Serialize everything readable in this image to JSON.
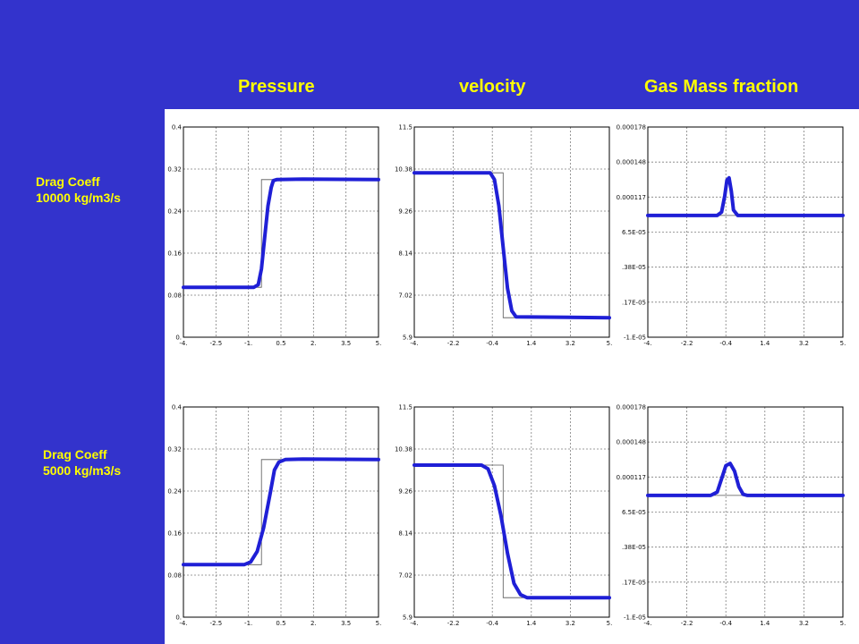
{
  "headers": [
    "Pressure",
    "velocity",
    "Gas Mass fraction"
  ],
  "row_labels": [
    {
      "line1": "Drag Coeff",
      "line2": "10000 kg/m3/s"
    },
    {
      "line1": "Drag Coeff",
      "line2": "5000 kg/m3/s"
    }
  ],
  "colors": {
    "background": "#3333cc",
    "header": "#ffff00",
    "series": "#1f1fd6",
    "reference": "#555555",
    "grid": "#7f7f7f"
  },
  "chart_data": [
    {
      "type": "line",
      "title": "Pressure",
      "row": 0,
      "col": 0,
      "xlim": [
        -4,
        5
      ],
      "ylim": [
        0,
        0.4
      ],
      "xticks": [
        "-4.",
        "-2.5",
        "-1.",
        "0.5",
        "2.",
        "3.5",
        "5."
      ],
      "yticks": [
        "0.",
        "0.08",
        "0.16",
        "0.24",
        "0.32",
        "0.4"
      ],
      "grid": true,
      "series": [
        {
          "x": [
            -4,
            -0.75,
            -0.55,
            -0.4,
            -0.25,
            -0.1,
            0.05,
            0.15,
            0.3,
            1.5,
            5
          ],
          "y": [
            0.095,
            0.095,
            0.1,
            0.13,
            0.19,
            0.25,
            0.285,
            0.298,
            0.3,
            0.301,
            0.3
          ]
        }
      ],
      "reference": {
        "x": [
          -4,
          -0.4,
          -0.4,
          5
        ],
        "y": [
          0.095,
          0.095,
          0.3,
          0.3
        ]
      }
    },
    {
      "type": "line",
      "title": "velocity",
      "row": 0,
      "col": 1,
      "xlim": [
        -4,
        5
      ],
      "ylim": [
        5.9,
        11.5
      ],
      "xticks": [
        "-4.",
        "-2.2",
        "-0.4",
        "1.4",
        "3.2",
        "5."
      ],
      "yticks": [
        "5.9",
        "7.02",
        "8.14",
        "9.26",
        "10.38",
        "11.5"
      ],
      "grid": true,
      "series": [
        {
          "x": [
            -4,
            -0.5,
            -0.3,
            -0.1,
            0.1,
            0.3,
            0.5,
            0.7,
            5
          ],
          "y": [
            10.28,
            10.28,
            10.1,
            9.4,
            8.3,
            7.2,
            6.6,
            6.44,
            6.42
          ]
        }
      ],
      "reference": {
        "x": [
          -4,
          0.1,
          0.1,
          5
        ],
        "y": [
          10.28,
          10.28,
          6.42,
          6.42
        ]
      }
    },
    {
      "type": "line",
      "title": "Gas Mass fraction",
      "row": 0,
      "col": 2,
      "xlim": [
        -4,
        5
      ],
      "ylim": [
        -1e-05,
        0.00018
      ],
      "xticks": [
        "-4.",
        "-2.2",
        "-0.4",
        "1.4",
        "3.2",
        "5."
      ],
      "yticks": [
        "-1.E-05",
        ".17E-05",
        ".38E-05",
        "6.5E-05",
        "0.000117",
        "0.000148",
        "0.000178"
      ],
      "grid": true,
      "series": [
        {
          "x": [
            -4,
            -0.8,
            -0.6,
            -0.45,
            -0.35,
            -0.25,
            -0.15,
            -0.05,
            0.15,
            5
          ],
          "y": [
            0.0001,
            0.0001,
            0.000103,
            0.000118,
            0.000132,
            0.000134,
            0.000122,
            0.000105,
            0.0001,
            0.0001
          ]
        }
      ],
      "reference": {
        "x": [
          -4,
          0.1,
          0.1,
          5
        ],
        "y": [
          0.0001,
          0.0001,
          0.0001,
          0.0001
        ]
      }
    },
    {
      "type": "line",
      "title": "Pressure",
      "row": 1,
      "col": 0,
      "xlim": [
        -4,
        5
      ],
      "ylim": [
        0,
        0.4
      ],
      "xticks": [
        "-4.",
        "-2.5",
        "-1.",
        "0.5",
        "2.",
        "3.5",
        "5."
      ],
      "yticks": [
        "0.",
        "0.08",
        "0.16",
        "0.24",
        "0.32",
        "0.4"
      ],
      "grid": true,
      "series": [
        {
          "x": [
            -4,
            -1.2,
            -0.9,
            -0.6,
            -0.3,
            0,
            0.2,
            0.4,
            0.7,
            1.5,
            5
          ],
          "y": [
            0.1,
            0.1,
            0.105,
            0.125,
            0.17,
            0.235,
            0.28,
            0.295,
            0.3,
            0.301,
            0.3
          ]
        }
      ],
      "reference": {
        "x": [
          -4,
          -0.4,
          -0.4,
          5
        ],
        "y": [
          0.1,
          0.1,
          0.3,
          0.3
        ]
      }
    },
    {
      "type": "line",
      "title": "velocity",
      "row": 1,
      "col": 1,
      "xlim": [
        -4,
        5
      ],
      "ylim": [
        5.9,
        11.5
      ],
      "xticks": [
        "-4.",
        "-2.2",
        "-0.4",
        "1.4",
        "3.2",
        "5."
      ],
      "yticks": [
        "5.9",
        "7.02",
        "8.14",
        "9.26",
        "10.38",
        "11.5"
      ],
      "grid": true,
      "series": [
        {
          "x": [
            -4,
            -0.9,
            -0.6,
            -0.3,
            0,
            0.3,
            0.6,
            0.9,
            1.2,
            5
          ],
          "y": [
            9.95,
            9.95,
            9.85,
            9.4,
            8.6,
            7.6,
            6.8,
            6.5,
            6.42,
            6.42
          ]
        }
      ],
      "reference": {
        "x": [
          -4,
          0.1,
          0.1,
          5
        ],
        "y": [
          9.95,
          9.95,
          6.42,
          6.42
        ]
      }
    },
    {
      "type": "line",
      "title": "Gas Mass fraction",
      "row": 1,
      "col": 2,
      "xlim": [
        -4,
        5
      ],
      "ylim": [
        -1e-05,
        0.00018
      ],
      "xticks": [
        "-4.",
        "-2.2",
        "-0.4",
        "1.4",
        "3.2",
        "5."
      ],
      "yticks": [
        "-1.E-05",
        ".17E-05",
        ".38E-05",
        "6.5E-05",
        "0.000117",
        "0.000148",
        "0.000178"
      ],
      "grid": true,
      "series": [
        {
          "x": [
            -4,
            -1.1,
            -0.8,
            -0.6,
            -0.4,
            -0.2,
            0,
            0.2,
            0.4,
            0.6,
            5
          ],
          "y": [
            0.0001,
            0.0001,
            0.000103,
            0.000115,
            0.000127,
            0.000129,
            0.000122,
            0.000108,
            0.000101,
            0.0001,
            0.0001
          ]
        }
      ],
      "reference": {
        "x": [
          -4,
          0.1,
          0.1,
          5
        ],
        "y": [
          0.0001,
          0.0001,
          0.0001,
          0.0001
        ]
      }
    }
  ]
}
